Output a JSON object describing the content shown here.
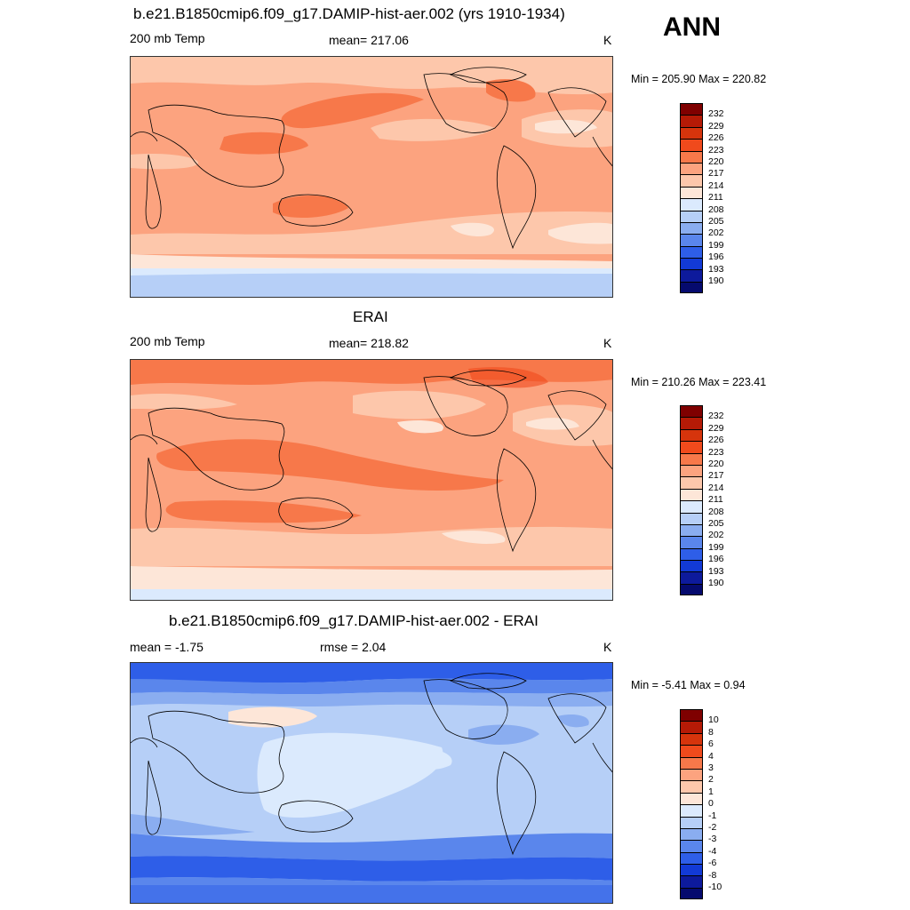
{
  "season": "ANN",
  "panels": [
    {
      "title": "b.e21.B1850cmip6.f09_g17.DAMIP-hist-aer.002 (yrs 1910-1934)",
      "left_label": "200 mb Temp",
      "center_label": "mean= 217.06",
      "units": "K",
      "minmax": "Min = 205.90 Max = 220.82",
      "palette": "temp"
    },
    {
      "title": "ERAI",
      "left_label": "200 mb Temp",
      "center_label": "mean= 218.82",
      "units": "K",
      "minmax": "Min = 210.26 Max = 223.41",
      "palette": "temp"
    },
    {
      "title": "b.e21.B1850cmip6.f09_g17.DAMIP-hist-aer.002 - ERAI",
      "left_label": "mean =  -1.75",
      "center_label": "rmse =   2.04",
      "units": "K",
      "minmax": "Min =  -5.41 Max =   0.94",
      "palette": "diff"
    }
  ],
  "colorbars": {
    "temp": {
      "labels": [
        "232",
        "229",
        "226",
        "223",
        "220",
        "217",
        "214",
        "211",
        "208",
        "205",
        "202",
        "199",
        "196",
        "193",
        "190"
      ],
      "colors": [
        "#7f0000",
        "#b51a06",
        "#d6340c",
        "#f04a1c",
        "#f7784a",
        "#fca37f",
        "#fdc7ab",
        "#fde6d8",
        "#dbeafd",
        "#b6cff7",
        "#8aadf0",
        "#5a86ec",
        "#2e5ee8",
        "#123ad6",
        "#0d1a9c",
        "#050a6e"
      ]
    },
    "diff": {
      "labels": [
        "10",
        "8",
        "6",
        "4",
        "3",
        "2",
        "1",
        "0",
        "-1",
        "-2",
        "-3",
        "-4",
        "-6",
        "-8",
        "-10"
      ],
      "colors": [
        "#7f0000",
        "#b51a06",
        "#d6340c",
        "#f04a1c",
        "#f7784a",
        "#fca37f",
        "#fdc7ab",
        "#fde6d8",
        "#dbeafd",
        "#b6cff7",
        "#8aadf0",
        "#5a86ec",
        "#2e5ee8",
        "#123ad6",
        "#0d1a9c",
        "#050a6e"
      ]
    }
  }
}
